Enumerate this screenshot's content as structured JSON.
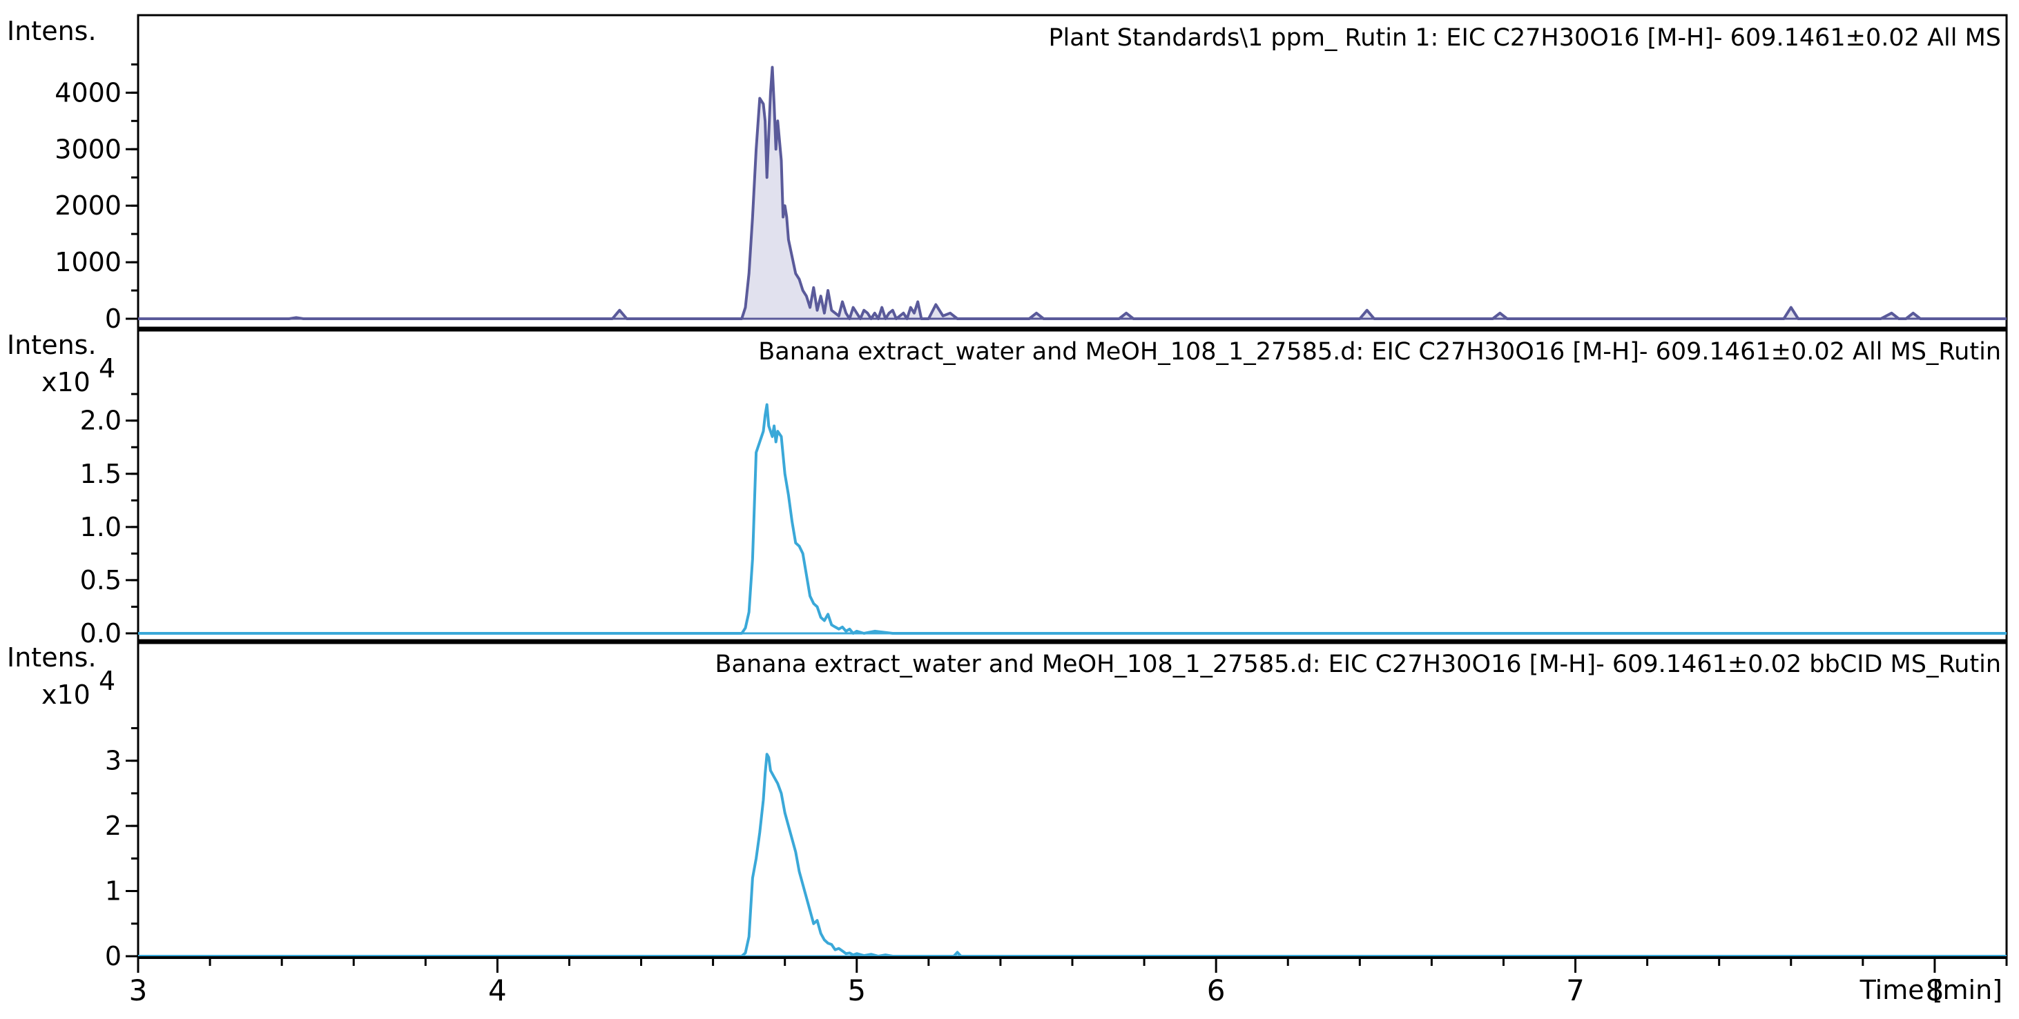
{
  "chart_data": {
    "type": "line",
    "xlabel": "Time [min]",
    "xlim": [
      3.0,
      8.2
    ],
    "xticks": [
      "3",
      "4",
      "5",
      "6",
      "7",
      "8"
    ],
    "xtick_values": [
      3,
      4,
      5,
      6,
      7,
      8
    ],
    "panels": [
      {
        "title": "Plant Standards\\1 ppm_ Rutin 1: EIC C27H30O16 [M-H]- 609.1461±0.02 All MS",
        "ylabel": "Intens.",
        "multiplier": "",
        "ylim": [
          0,
          4700
        ],
        "yticks": [
          "0",
          "1000",
          "2000",
          "3000",
          "4000"
        ],
        "ytick_values": [
          0,
          1000,
          2000,
          3000,
          4000
        ],
        "color": "#5a5a9a",
        "fill": true,
        "series": [
          {
            "x": [
              3.0,
              3.42,
              3.44,
              3.46,
              4.32,
              4.34,
              4.36,
              4.68,
              4.69,
              4.7,
              4.71,
              4.72,
              4.73,
              4.74,
              4.745,
              4.75,
              4.76,
              4.765,
              4.77,
              4.775,
              4.78,
              4.79,
              4.795,
              4.8,
              4.805,
              4.81,
              4.82,
              4.83,
              4.84,
              4.85,
              4.86,
              4.87,
              4.88,
              4.89,
              4.9,
              4.91,
              4.92,
              4.93,
              4.94,
              4.95,
              4.96,
              4.97,
              4.98,
              4.99,
              5.0,
              5.01,
              5.02,
              5.03,
              5.04,
              5.05,
              5.06,
              5.07,
              5.08,
              5.09,
              5.1,
              5.11,
              5.12,
              5.13,
              5.14,
              5.15,
              5.16,
              5.17,
              5.18,
              5.2,
              5.22,
              5.24,
              5.26,
              5.28,
              5.3,
              5.32,
              5.48,
              5.5,
              5.52,
              5.73,
              5.75,
              5.77,
              6.4,
              6.42,
              6.44,
              6.77,
              6.79,
              6.81,
              7.58,
              7.6,
              7.62,
              7.85,
              7.88,
              7.9,
              7.92,
              7.94,
              7.96,
              8.2
            ],
            "y": [
              0,
              0,
              20,
              0,
              0,
              150,
              0,
              0,
              200,
              800,
              1800,
              3000,
              3900,
              3800,
              3500,
              2500,
              4000,
              4450,
              3800,
              3000,
              3500,
              2800,
              1800,
              2000,
              1800,
              1400,
              1100,
              800,
              700,
              500,
              400,
              200,
              550,
              150,
              400,
              100,
              500,
              150,
              100,
              50,
              300,
              100,
              0,
              200,
              100,
              0,
              150,
              100,
              0,
              100,
              0,
              200,
              0,
              100,
              150,
              0,
              50,
              100,
              0,
              200,
              100,
              300,
              0,
              0,
              250,
              50,
              100,
              0,
              0,
              0,
              0,
              100,
              0,
              0,
              100,
              0,
              0,
              150,
              0,
              0,
              100,
              0,
              0,
              200,
              0,
              0,
              100,
              0,
              0,
              100,
              0,
              0
            ]
          }
        ]
      },
      {
        "title": "Banana extract_water and MeOH_108_1_27585.d: EIC C27H30O16 [M-H]- 609.1461±0.02 All MS_Rutin",
        "ylabel": "Intens.",
        "multiplier": "x10",
        "multiplier_exp": "4",
        "ylim": [
          0,
          2.4
        ],
        "yticks": [
          "0.0",
          "0.5",
          "1.0",
          "1.5",
          "2.0"
        ],
        "ytick_values": [
          0,
          0.5,
          1.0,
          1.5,
          2.0
        ],
        "color": "#3aa8d8",
        "fill": false,
        "series": [
          {
            "x": [
              3.0,
              4.68,
              4.69,
              4.7,
              4.71,
              4.715,
              4.72,
              4.73,
              4.735,
              4.74,
              4.745,
              4.75,
              4.755,
              4.76,
              4.765,
              4.77,
              4.775,
              4.78,
              4.79,
              4.8,
              4.81,
              4.82,
              4.83,
              4.84,
              4.85,
              4.86,
              4.87,
              4.88,
              4.89,
              4.9,
              4.91,
              4.92,
              4.93,
              4.94,
              4.95,
              4.96,
              4.97,
              4.98,
              4.99,
              5.0,
              5.02,
              5.05,
              5.1,
              8.2
            ],
            "y": [
              0,
              0,
              0.05,
              0.2,
              0.7,
              1.2,
              1.7,
              1.8,
              1.85,
              1.9,
              2.05,
              2.15,
              1.95,
              1.9,
              1.85,
              1.95,
              1.8,
              1.9,
              1.85,
              1.5,
              1.3,
              1.05,
              0.85,
              0.82,
              0.75,
              0.55,
              0.35,
              0.28,
              0.25,
              0.15,
              0.12,
              0.18,
              0.08,
              0.06,
              0.04,
              0.06,
              0.02,
              0.04,
              0.0,
              0.02,
              0.0,
              0.02,
              0.0,
              0.0
            ]
          }
        ]
      },
      {
        "title": "Banana extract_water and MeOH_108_1_27585.d: EIC C27H30O16 [M-H]- 609.1461±0.02 bbCID MS_Rutin",
        "ylabel": "Intens.",
        "multiplier": "x10",
        "multiplier_exp": "4",
        "ylim": [
          0,
          3.6
        ],
        "yticks": [
          "0",
          "1",
          "2",
          "3"
        ],
        "ytick_values": [
          0,
          1,
          2,
          3
        ],
        "color": "#3aa8d8",
        "fill": false,
        "series": [
          {
            "x": [
              3.0,
              4.68,
              4.69,
              4.7,
              4.71,
              4.72,
              4.73,
              4.74,
              4.745,
              4.75,
              4.755,
              4.76,
              4.77,
              4.78,
              4.79,
              4.8,
              4.81,
              4.82,
              4.83,
              4.84,
              4.85,
              4.86,
              4.87,
              4.88,
              4.89,
              4.9,
              4.91,
              4.92,
              4.93,
              4.94,
              4.95,
              4.96,
              4.97,
              4.98,
              4.99,
              5.0,
              5.02,
              5.04,
              5.06,
              5.08,
              5.1,
              5.27,
              5.28,
              5.29,
              8.2
            ],
            "y": [
              0,
              0,
              0.05,
              0.3,
              1.2,
              1.5,
              1.9,
              2.4,
              2.8,
              3.1,
              3.05,
              2.85,
              2.75,
              2.65,
              2.5,
              2.2,
              2.0,
              1.8,
              1.6,
              1.3,
              1.1,
              0.9,
              0.7,
              0.5,
              0.55,
              0.35,
              0.25,
              0.2,
              0.18,
              0.1,
              0.12,
              0.08,
              0.04,
              0.05,
              0.02,
              0.04,
              0.01,
              0.03,
              0.0,
              0.02,
              0.0,
              0.0,
              0.06,
              0.0,
              0.0
            ]
          }
        ]
      }
    ]
  }
}
